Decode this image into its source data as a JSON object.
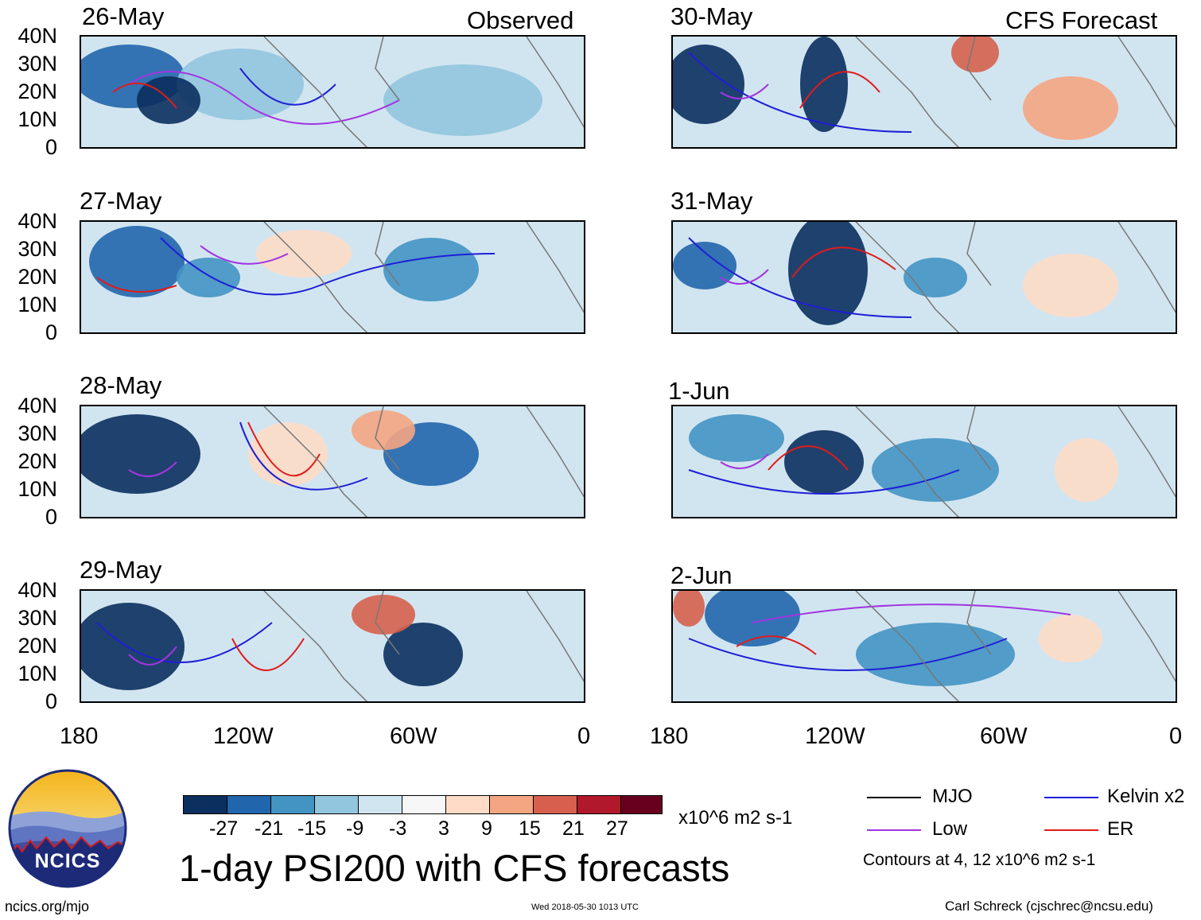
{
  "header": {
    "left": "Observed",
    "right": "CFS Forecast"
  },
  "panels": {
    "observed": [
      {
        "date": "26-May"
      },
      {
        "date": "27-May"
      },
      {
        "date": "28-May"
      },
      {
        "date": "29-May"
      }
    ],
    "forecast": [
      {
        "date": "30-May"
      },
      {
        "date": "31-May"
      },
      {
        "date": "1-Jun"
      },
      {
        "date": "2-Jun"
      }
    ]
  },
  "axes": {
    "lat_ticks": [
      "40N",
      "30N",
      "20N",
      "10N",
      "0"
    ],
    "lon_ticks": [
      "180",
      "120W",
      "60W",
      "0"
    ]
  },
  "colorbar": {
    "colors": [
      "#0b2f5e",
      "#2166ac",
      "#4393c3",
      "#92c5de",
      "#d1e5f0",
      "#f7f7f7",
      "#fddbc7",
      "#f4a582",
      "#d6604d",
      "#b2182b",
      "#67001f"
    ],
    "labels": [
      "-27",
      "-21",
      "-15",
      "-9",
      "-3",
      "3",
      "9",
      "15",
      "21",
      "27"
    ],
    "units": "x10^6 m2 s-1"
  },
  "title": "1-day PSI200 with CFS forecasts",
  "logo": {
    "text": "NCICS"
  },
  "legend": {
    "items": [
      {
        "label": "MJO",
        "color": "#000000"
      },
      {
        "label": "Kelvin x2",
        "color": "#1f1fd6"
      },
      {
        "label": "Low",
        "color": "#a335e0"
      },
      {
        "label": "ER",
        "color": "#e01b1b"
      }
    ],
    "contours_note": "Contours at 4, 12 x10^6 m2 s-1"
  },
  "footer": {
    "site": "ncics.org/mjo",
    "timestamp": "Wed 2018-05-30 1013 UTC",
    "author": "Carl Schreck (cjschrec@ncsu.edu)"
  }
}
